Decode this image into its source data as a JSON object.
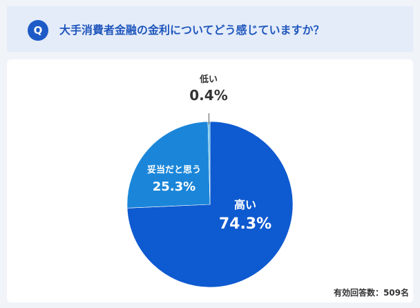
{
  "question": {
    "badge": "Q",
    "text": "大手消費者金融の金利についてどう感じていますか？"
  },
  "chart_data": {
    "type": "pie",
    "slices": [
      {
        "label": "高い",
        "value": 74.3,
        "display": "74.3%",
        "color": "#0e5ad0"
      },
      {
        "label": "妥当だと思う",
        "value": 25.3,
        "display": "25.3%",
        "color": "#1b86d9"
      },
      {
        "label": "低い",
        "value": 0.4,
        "display": "0.4%",
        "color": "#5fbde7"
      }
    ]
  },
  "note": "有効回答数：509名"
}
